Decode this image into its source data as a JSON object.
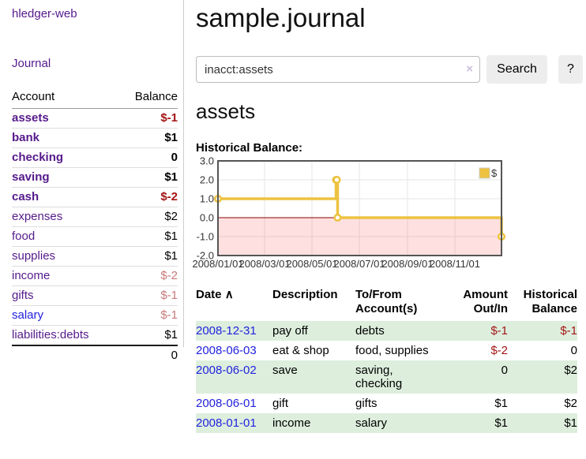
{
  "app": {
    "brand": "hledger-web",
    "journal_link": "Journal"
  },
  "sidebar": {
    "columns": {
      "account": "Account",
      "balance": "Balance"
    },
    "accounts": [
      {
        "name": "assets",
        "balance": "$-1"
      },
      {
        "name": "bank",
        "balance": "$1"
      },
      {
        "name": "checking",
        "balance": "0"
      },
      {
        "name": "saving",
        "balance": "$1"
      },
      {
        "name": "cash",
        "balance": "$-2"
      },
      {
        "name": "expenses",
        "balance": "$2"
      },
      {
        "name": "food",
        "balance": "$1"
      },
      {
        "name": "supplies",
        "balance": "$1"
      },
      {
        "name": "income",
        "balance": "$-2"
      },
      {
        "name": "gifts",
        "balance": "$-1"
      },
      {
        "name": "salary",
        "balance": "$-1"
      },
      {
        "name": "liabilities:debts",
        "balance": "$1"
      }
    ],
    "total": "0"
  },
  "header": {
    "title": "sample.journal"
  },
  "search": {
    "query": "inacct:assets",
    "clear_icon": "×",
    "button": "Search",
    "help_button": "?"
  },
  "account_page": {
    "title": "assets",
    "chart_label": "Historical Balance:"
  },
  "chart_data": {
    "type": "line",
    "style": "step",
    "title": "Historical Balance",
    "series": [
      {
        "name": "$",
        "color": "#edc240",
        "points": [
          [
            "2008-01-01",
            1
          ],
          [
            "2008-06-01",
            2
          ],
          [
            "2008-06-02",
            2
          ],
          [
            "2008-06-03",
            0
          ],
          [
            "2008-12-31",
            -1
          ]
        ]
      }
    ],
    "x_range": [
      "2008-01-01",
      "2008-12-31"
    ],
    "ylim": [
      -2,
      3
    ],
    "y_ticks": [
      {
        "label": "3.0",
        "value": 3
      },
      {
        "label": "2.0",
        "value": 2
      },
      {
        "label": "1.0",
        "value": 1
      },
      {
        "label": "0.0",
        "value": 0
      },
      {
        "label": "-1.0",
        "value": -1
      },
      {
        "label": "-2.0",
        "value": -2
      }
    ],
    "x_ticks": [
      {
        "label": "2008/01/01",
        "date": "2008-01-01"
      },
      {
        "label": "2008/03/01",
        "date": "2008-03-01"
      },
      {
        "label": "2008/05/01",
        "date": "2008-05-01"
      },
      {
        "label": "2008/07/01",
        "date": "2008-07-01"
      },
      {
        "label": "2008/09/01",
        "date": "2008-09-01"
      },
      {
        "label": "2008/11/01",
        "date": "2008-11-01"
      }
    ],
    "legend": {
      "position": "top-right",
      "label": "$"
    },
    "grid": true,
    "gridline_color": "#e6e6e6",
    "negative_region_fill": "#ff0000",
    "negative_region_opacity": 0.12,
    "zero_line_color": "#8b0000",
    "border_color": "#545454",
    "tick_label_color": "#333333"
  },
  "register": {
    "headers": {
      "date": "Date",
      "sort_icon": "∧",
      "description": "Description",
      "accounts": "To/From\nAccount(s)",
      "amount": "Amount\nOut/In",
      "balance": "Historical\nBalance"
    },
    "rows": [
      {
        "date": "2008-12-31",
        "description": "pay off",
        "accounts": "debts",
        "amount": "$-1",
        "balance": "$-1"
      },
      {
        "date": "2008-06-03",
        "description": "eat & shop",
        "accounts": "food, supplies",
        "amount": "$-2",
        "balance": "0"
      },
      {
        "date": "2008-06-02",
        "description": "save",
        "accounts": "saving,\nchecking",
        "amount": "0",
        "balance": "$2"
      },
      {
        "date": "2008-06-01",
        "description": "gift",
        "accounts": "gifts",
        "amount": "$1",
        "balance": "$2"
      },
      {
        "date": "2008-01-01",
        "description": "income",
        "accounts": "salary",
        "amount": "$1",
        "balance": "$1"
      }
    ]
  }
}
